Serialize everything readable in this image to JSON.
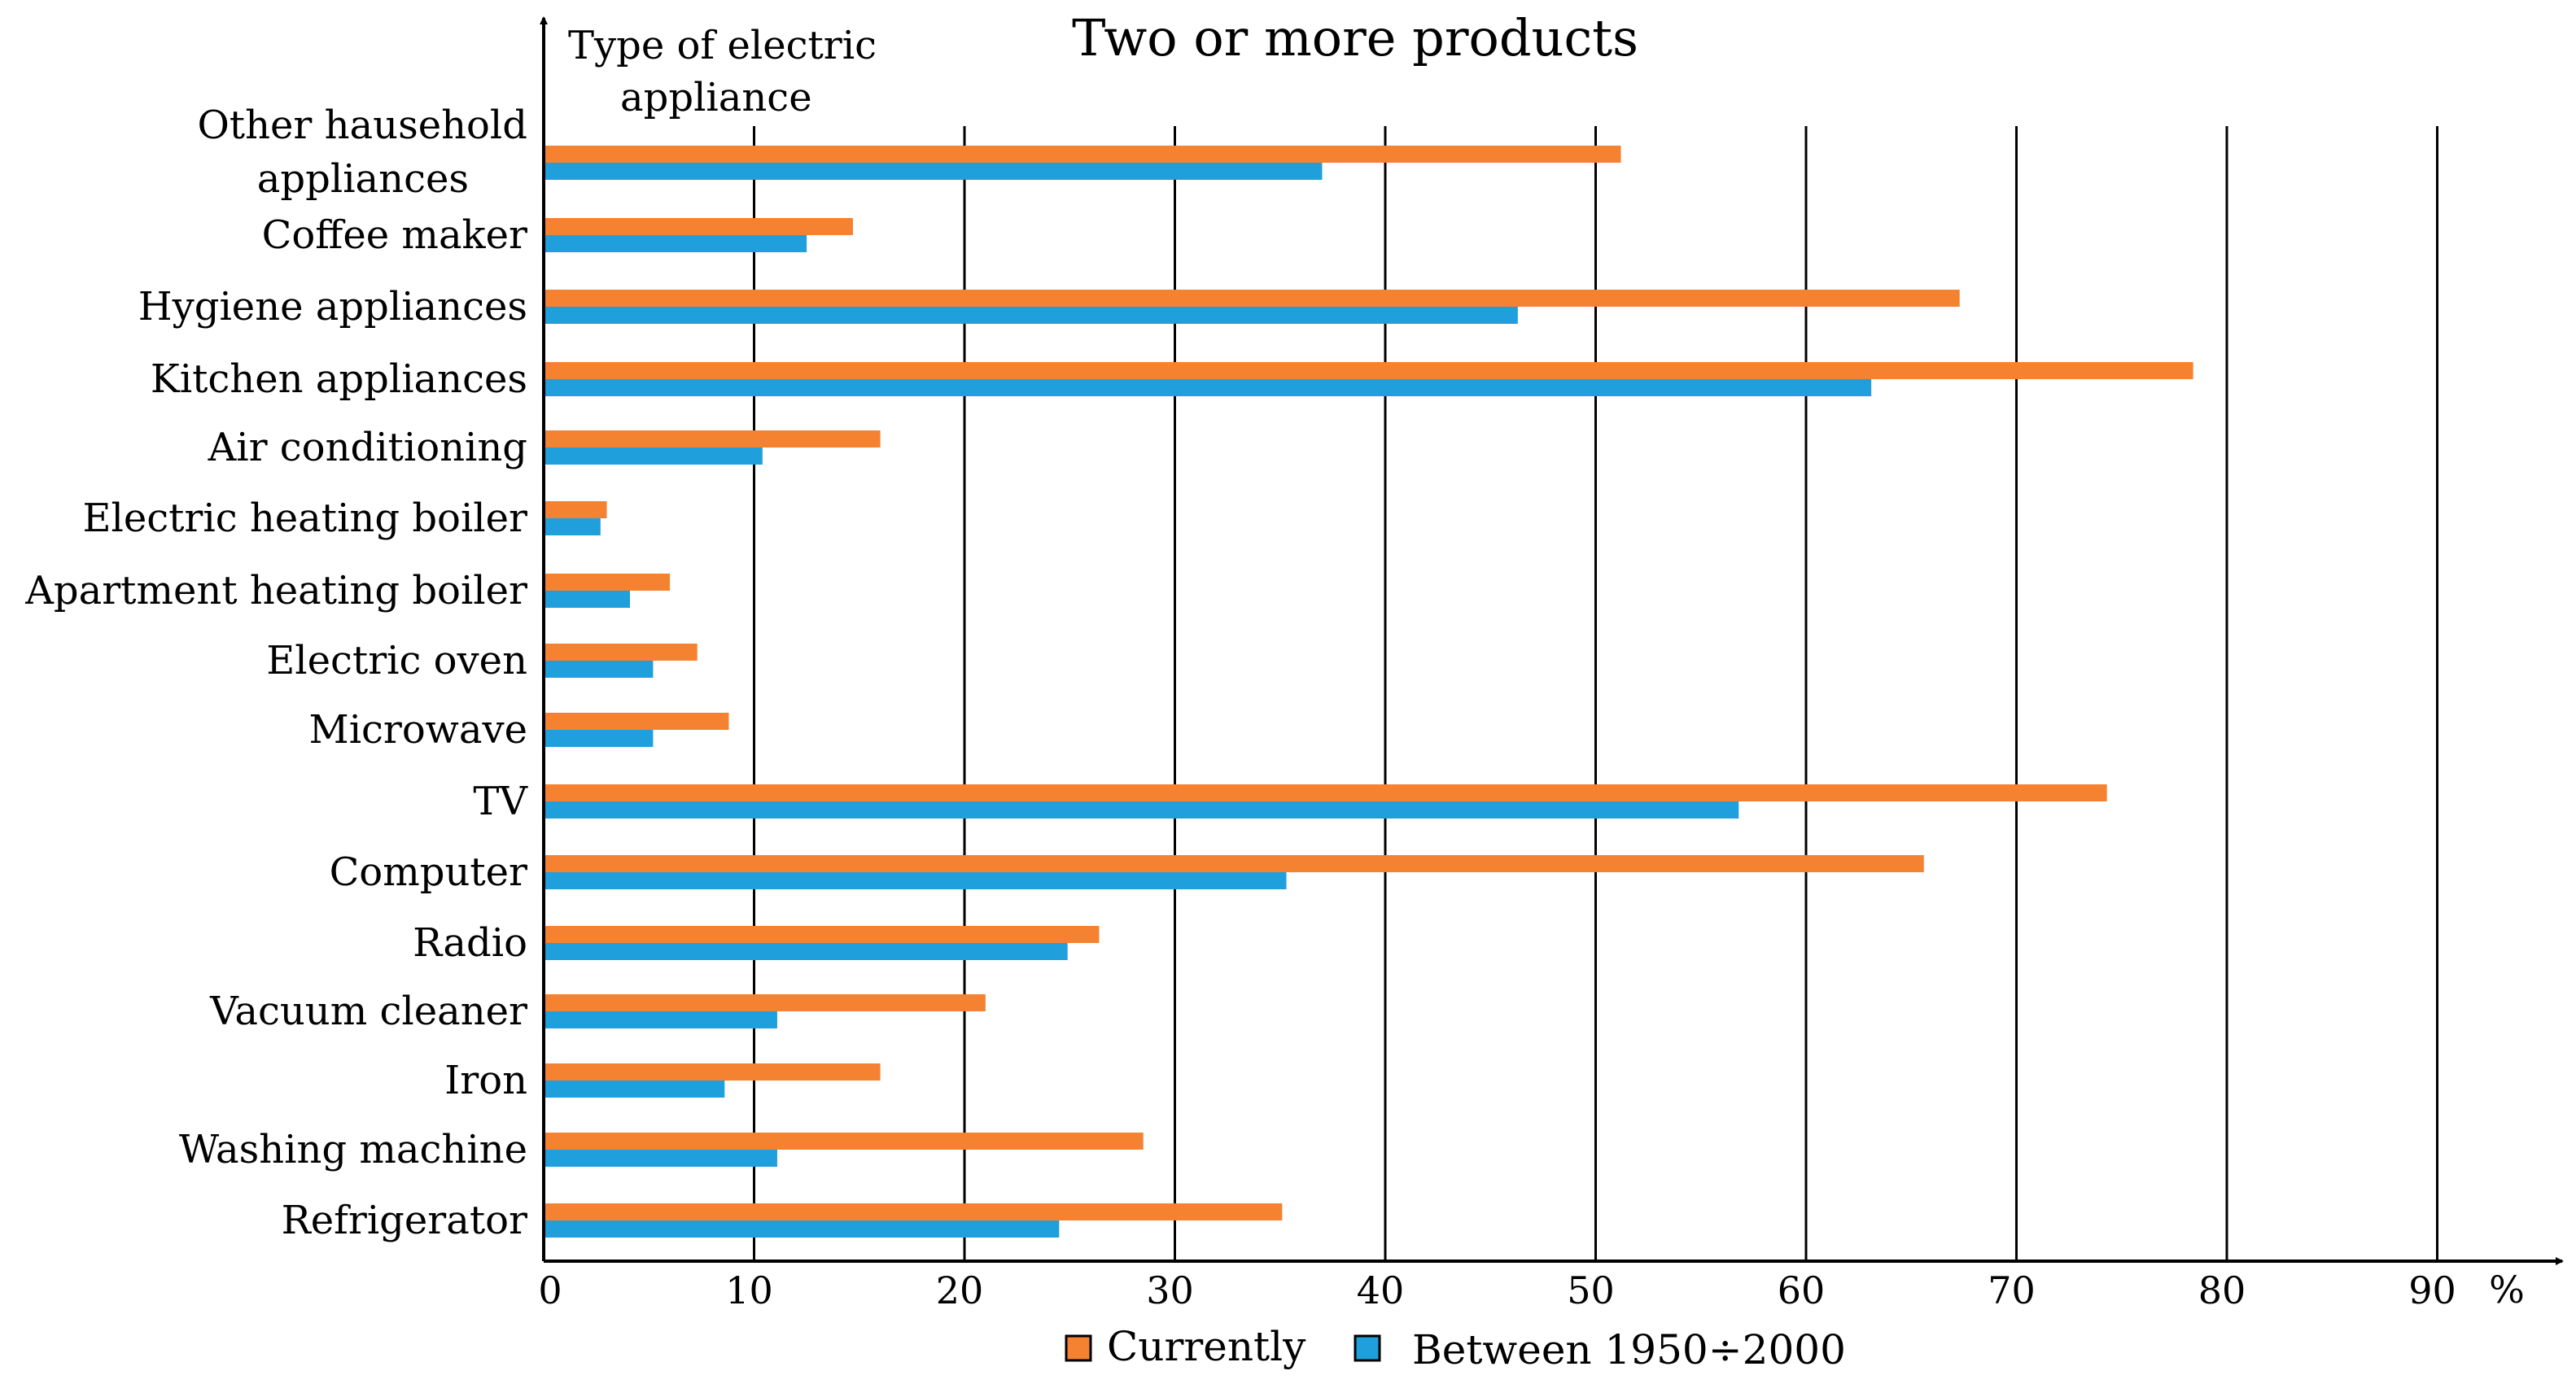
{
  "chart_data": {
    "type": "bar",
    "orientation": "horizontal",
    "title": "Two or more products",
    "ylabel_line1": "Type of electric",
    "ylabel_line2": "appliance",
    "xunit": "%",
    "xlim": [
      0,
      90
    ],
    "xticks": [
      0,
      10,
      20,
      30,
      40,
      50,
      60,
      70,
      80,
      90
    ],
    "grid": "vertical",
    "legend": "bottom",
    "categories": [
      "Other hausehold appliances",
      "Coffee maker",
      "Hygiene appliances",
      "Kitchen appliances",
      "Air conditioning",
      "Electric heating boiler",
      "Apartment heating boiler",
      "Electric oven",
      "Microwave",
      "TV",
      "Computer",
      "Radio",
      "Vacuum cleaner",
      "Iron",
      "Washing machine",
      "Refrigerator"
    ],
    "series": [
      {
        "name": "Currently",
        "color": "#F58231",
        "values": [
          51.2,
          14.7,
          67.3,
          78.4,
          16.0,
          3.0,
          6.0,
          7.3,
          8.8,
          74.3,
          65.6,
          26.4,
          21.0,
          16.0,
          28.5,
          35.1
        ]
      },
      {
        "name": "Between 1950÷2000",
        "color": "#1F9FDB",
        "values": [
          37.0,
          12.5,
          46.3,
          63.1,
          10.4,
          2.7,
          4.1,
          5.2,
          5.2,
          56.8,
          35.3,
          24.9,
          11.1,
          8.6,
          11.1,
          24.5
        ]
      }
    ]
  }
}
